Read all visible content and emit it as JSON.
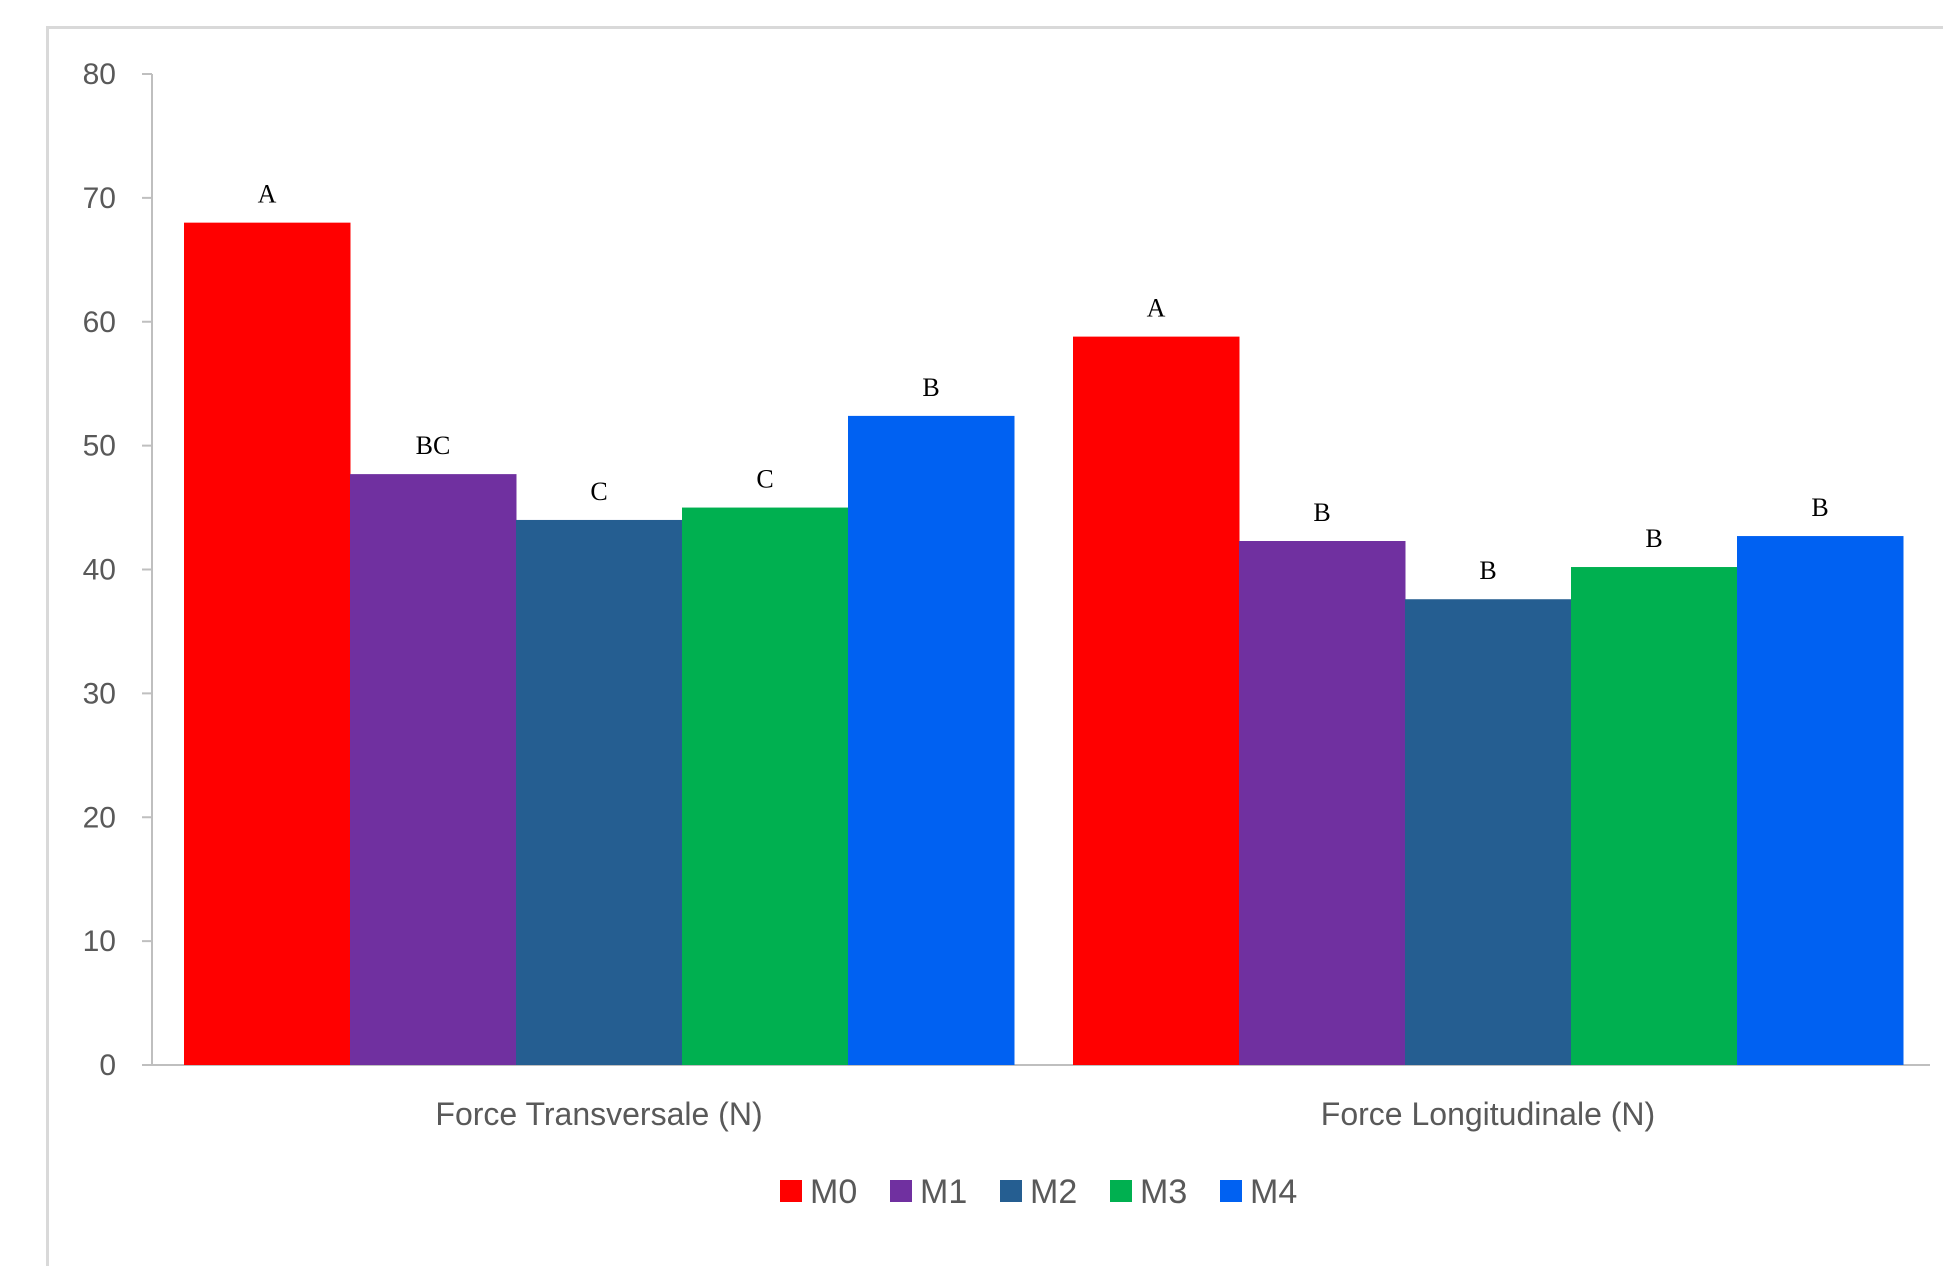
{
  "chart_data": {
    "type": "bar",
    "categories": [
      "Force Transversale (N)",
      "Force Longitudinale (N)"
    ],
    "series": [
      {
        "name": "M0",
        "color": "#ff0000",
        "values": [
          68.0,
          58.8
        ],
        "labels": [
          "A",
          "A"
        ]
      },
      {
        "name": "M1",
        "color": "#7030a0",
        "values": [
          47.7,
          42.3
        ],
        "labels": [
          "BC",
          "B"
        ]
      },
      {
        "name": "M2",
        "color": "#255e91",
        "values": [
          44.0,
          37.6
        ],
        "labels": [
          "C",
          "B"
        ]
      },
      {
        "name": "M3",
        "color": "#00b050",
        "values": [
          45.0,
          40.2
        ],
        "labels": [
          "C",
          "B"
        ]
      },
      {
        "name": "M4",
        "color": "#0061f2",
        "values": [
          52.4,
          42.7
        ],
        "labels": [
          "B",
          "B"
        ]
      }
    ],
    "ylim": [
      0,
      80
    ],
    "yticks": [
      0,
      10,
      20,
      30,
      40,
      50,
      60,
      70,
      80
    ],
    "title": "",
    "xlabel": "",
    "ylabel": "",
    "grid": false,
    "legend_position": "bottom"
  }
}
